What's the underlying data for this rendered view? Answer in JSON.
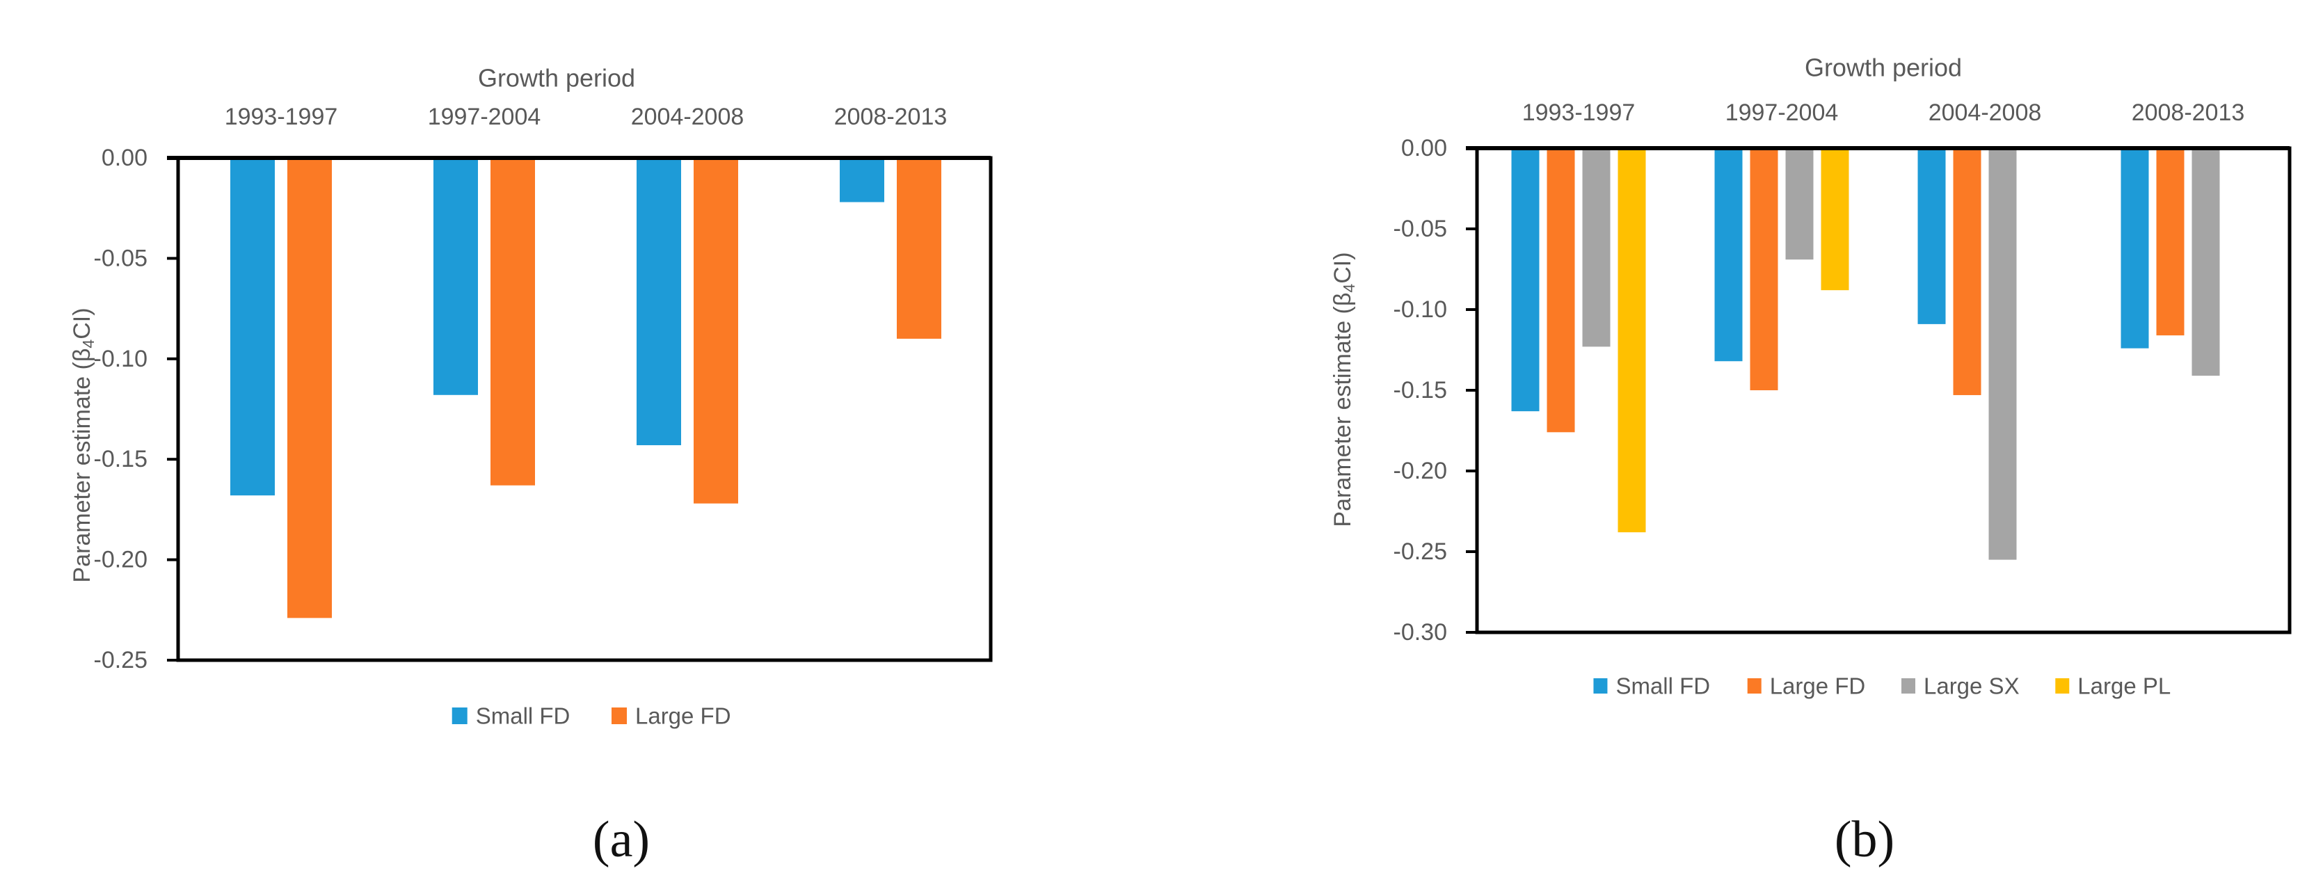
{
  "figure": {
    "description": "Two grouped bar charts of parameter estimates by growth period",
    "background": "#ffffff"
  },
  "colors": {
    "axis_text": "#595959",
    "axis_line": "#000000",
    "caption_text": "#111111"
  },
  "chart_data": [
    {
      "id": "a",
      "type": "bar",
      "title": "Growth period",
      "ylabel": "Parameter estimate (β₄CI)",
      "caption": "(a)",
      "categories": [
        "1993-1997",
        "1997-2004",
        "2004-2008",
        "2008-2013"
      ],
      "series": [
        {
          "name": "Small FD",
          "color": "#1E9BD7",
          "values": [
            -0.168,
            -0.118,
            -0.143,
            -0.022
          ]
        },
        {
          "name": "Large FD",
          "color": "#FB7A25",
          "values": [
            -0.229,
            -0.163,
            -0.172,
            -0.09
          ]
        }
      ],
      "ylim": [
        0,
        -0.25
      ],
      "y_tick_labels": [
        "0.00",
        "-0.05",
        "-0.10",
        "-0.15",
        "-0.20",
        "-0.25"
      ],
      "grid": "off",
      "legend_position": "bottom"
    },
    {
      "id": "b",
      "type": "bar",
      "title": "Growth period",
      "ylabel": "Parameter estimate (β₄CI)",
      "caption": "(b)",
      "categories": [
        "1993-1997",
        "1997-2004",
        "2004-2008",
        "2008-2013"
      ],
      "series": [
        {
          "name": "Small FD",
          "color": "#1E9BD7",
          "values": [
            -0.163,
            -0.132,
            -0.109,
            -0.124
          ]
        },
        {
          "name": "Large FD",
          "color": "#FB7A25",
          "values": [
            -0.176,
            -0.15,
            -0.153,
            -0.116
          ]
        },
        {
          "name": "Large SX",
          "color": "#A5A5A5",
          "values": [
            -0.123,
            -0.069,
            -0.255,
            -0.141
          ]
        },
        {
          "name": "Large PL",
          "color": "#FFC000",
          "values": [
            -0.238,
            -0.088,
            null,
            null
          ]
        }
      ],
      "ylim": [
        0,
        -0.3
      ],
      "y_tick_labels": [
        "0.00",
        "-0.05",
        "-0.10",
        "-0.15",
        "-0.20",
        "-0.25",
        "-0.30"
      ],
      "grid": "off",
      "legend_position": "bottom"
    }
  ]
}
